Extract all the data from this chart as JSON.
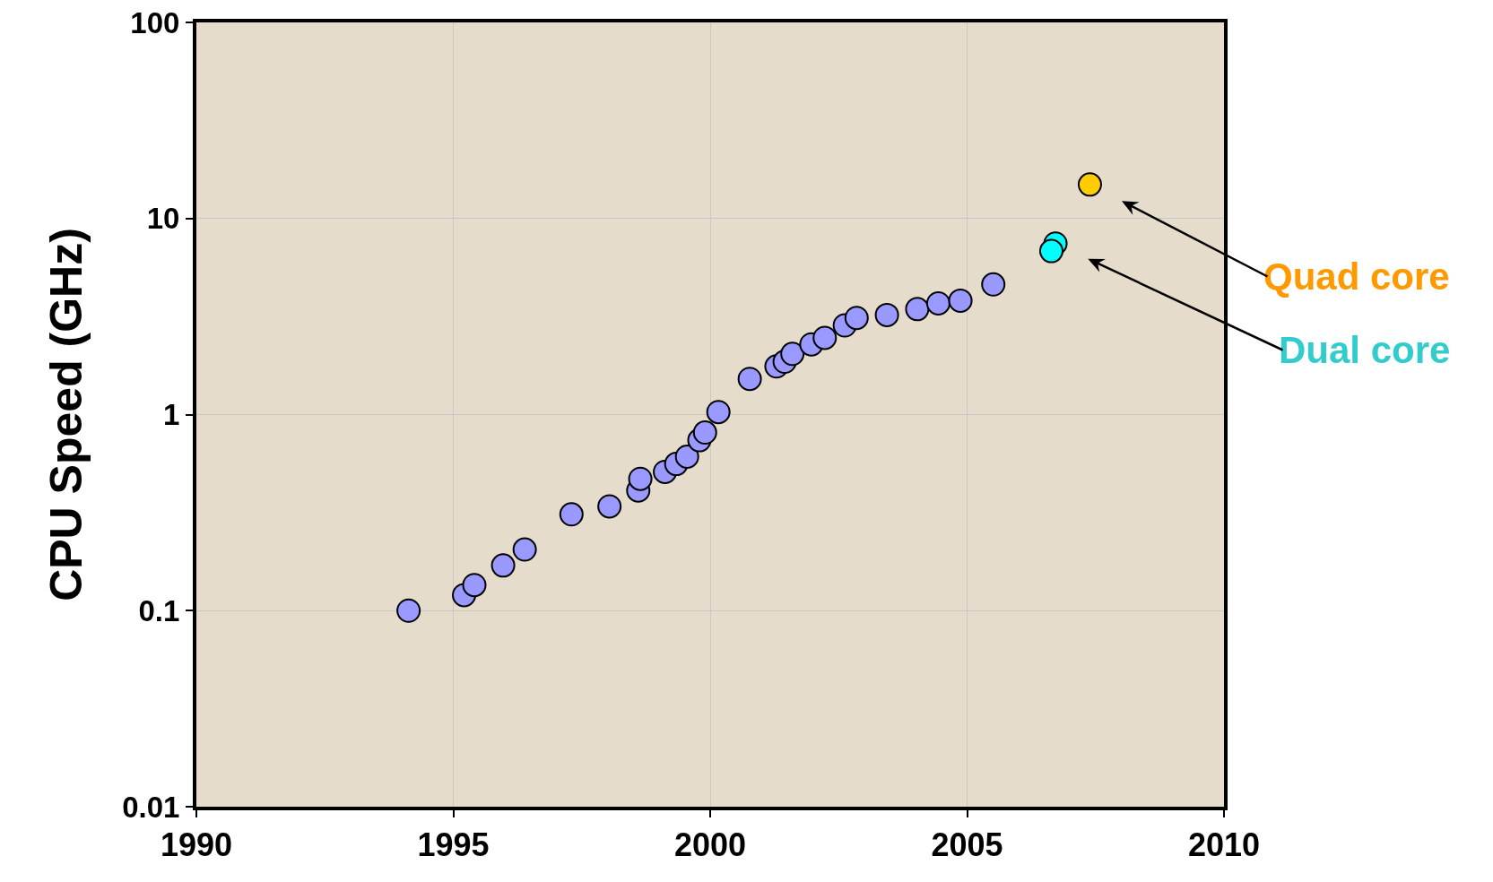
{
  "chart_data": {
    "type": "scatter",
    "ylabel": "CPU Speed (GHz)",
    "log": "y",
    "grid": true,
    "marker": "circle",
    "legend": false,
    "xlim": [
      1990,
      2010
    ],
    "xticks": [
      1990,
      1995,
      2000,
      2005,
      2010
    ],
    "ylim": [
      0.01,
      100
    ],
    "yticks": [
      {
        "value": 0.01,
        "label": "0.01"
      },
      {
        "value": 0.1,
        "label": "0.1"
      },
      {
        "value": 1,
        "label": "1"
      },
      {
        "value": 10,
        "label": "10"
      },
      {
        "value": 100,
        "label": "100"
      }
    ],
    "series": [
      {
        "color": "#9999ff",
        "x": [
          1994.13,
          1995.21,
          1995.41,
          1995.97,
          1996.39,
          1997.3,
          1998.04,
          1998.6,
          1998.64,
          1999.12,
          1999.34,
          1999.55,
          1999.79,
          1999.9,
          2000.16,
          2000.77,
          2001.29,
          2001.45,
          2001.6,
          2001.97,
          2002.23,
          2002.62,
          2002.85,
          2003.44,
          2004.03,
          2004.44,
          2004.87,
          2005.51
        ],
        "values": [
          0.1,
          0.12,
          0.135,
          0.17,
          0.205,
          0.31,
          0.34,
          0.41,
          0.47,
          0.51,
          0.56,
          0.61,
          0.74,
          0.81,
          1.03,
          1.52,
          1.76,
          1.86,
          2.04,
          2.28,
          2.46,
          2.85,
          3.11,
          3.22,
          3.45,
          3.69,
          3.81,
          4.61
        ]
      },
      {
        "name": "Dual core",
        "color": "#00ffff",
        "x": [
          2006.72,
          2006.64
        ],
        "values": [
          7.45,
          6.82
        ]
      },
      {
        "name": "Quad core",
        "color": "#ffcc00",
        "x": [
          2007.39
        ],
        "values": [
          14.9
        ]
      }
    ]
  }
}
